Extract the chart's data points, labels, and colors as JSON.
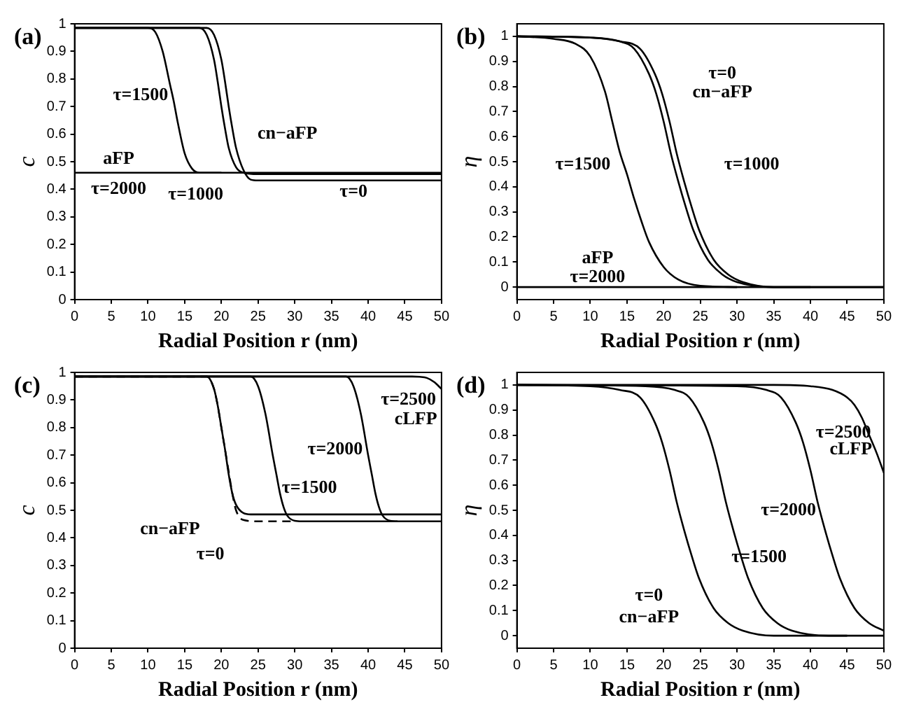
{
  "chart_data": [
    {
      "type": "line",
      "title": "(a)",
      "xlabel": "Radial Position r (nm)",
      "ylabel": "c",
      "xlim": [
        0,
        50
      ],
      "xticks": [
        0,
        5,
        10,
        15,
        20,
        25,
        30,
        35,
        40,
        45,
        50
      ],
      "ylim": [
        0,
        1
      ],
      "yticks": [
        0,
        0.1,
        0.2,
        0.3,
        0.4,
        0.5,
        0.6,
        0.7,
        0.8,
        0.9,
        1
      ],
      "marker": "none",
      "legend": false,
      "series": [
        {
          "color": "#000000",
          "x": [
            0,
            10,
            11,
            12,
            13,
            13.5,
            14,
            15,
            16,
            17,
            20
          ],
          "values": [
            0.985,
            0.985,
            0.97,
            0.9,
            0.78,
            0.72,
            0.65,
            0.53,
            0.475,
            0.46,
            0.46
          ]
        },
        {
          "color": "#000000",
          "x": [
            0,
            17,
            18,
            19,
            19.5,
            20,
            20.5,
            21,
            22,
            23,
            25,
            50
          ],
          "values": [
            0.985,
            0.985,
            0.96,
            0.87,
            0.79,
            0.7,
            0.62,
            0.55,
            0.48,
            0.46,
            0.455,
            0.455
          ]
        },
        {
          "color": "#000000",
          "x": [
            0,
            18,
            19,
            20,
            20.5,
            21,
            21.5,
            22,
            23,
            24,
            25,
            50
          ],
          "values": [
            0.985,
            0.985,
            0.96,
            0.87,
            0.79,
            0.7,
            0.62,
            0.55,
            0.47,
            0.435,
            0.432,
            0.432
          ]
        },
        {
          "color": "#000000",
          "x": [
            0,
            25,
            50
          ],
          "values": [
            0.46,
            0.46,
            0.46
          ]
        }
      ],
      "annotations": [
        "τ=1500",
        "aFP",
        "τ=2000",
        "τ=1000",
        "cn−aFP",
        "τ=0"
      ]
    },
    {
      "type": "line",
      "title": "(b)",
      "xlabel": "Radial Position r (nm)",
      "ylabel": "η",
      "xlim": [
        0,
        50
      ],
      "xticks": [
        0,
        5,
        10,
        15,
        20,
        25,
        30,
        35,
        40,
        45,
        50
      ],
      "ylim": [
        -0.05,
        1.05
      ],
      "yticks": [
        0,
        0.1,
        0.2,
        0.3,
        0.4,
        0.5,
        0.6,
        0.7,
        0.8,
        0.9,
        1
      ],
      "marker": "none",
      "legend": false,
      "series": [
        {
          "color": "#000000",
          "x": [
            0,
            5,
            8,
            10,
            12,
            13,
            14,
            15,
            16,
            17,
            18,
            20,
            22,
            25,
            30
          ],
          "values": [
            1,
            0.99,
            0.97,
            0.92,
            0.78,
            0.66,
            0.54,
            0.45,
            0.35,
            0.26,
            0.18,
            0.08,
            0.03,
            0.005,
            0
          ]
        },
        {
          "color": "#000000",
          "x": [
            0,
            10,
            14,
            16,
            18,
            19,
            20,
            21,
            22,
            23,
            24,
            26,
            28,
            30,
            35,
            40
          ],
          "values": [
            1,
            0.995,
            0.98,
            0.95,
            0.85,
            0.77,
            0.66,
            0.53,
            0.42,
            0.32,
            0.23,
            0.11,
            0.05,
            0.02,
            0,
            0
          ]
        },
        {
          "color": "#000000",
          "x": [
            0,
            10,
            14,
            16.8,
            18.8,
            19.8,
            20.8,
            21.8,
            22.8,
            23.8,
            24.8,
            26.8,
            28.8,
            30.8,
            35,
            50
          ],
          "values": [
            1,
            0.995,
            0.98,
            0.95,
            0.85,
            0.77,
            0.66,
            0.53,
            0.42,
            0.32,
            0.23,
            0.11,
            0.05,
            0.02,
            0,
            0
          ]
        },
        {
          "color": "#000000",
          "x": [
            0,
            25,
            50
          ],
          "values": [
            0,
            0,
            0
          ]
        }
      ],
      "annotations": [
        "τ=0",
        "cn−aFP",
        "τ=1000",
        "τ=1500",
        "aFP",
        "τ=2000"
      ]
    },
    {
      "type": "line",
      "title": "(c)",
      "xlabel": "Radial Position r (nm)",
      "ylabel": "c",
      "xlim": [
        0,
        50
      ],
      "xticks": [
        0,
        5,
        10,
        15,
        20,
        25,
        30,
        35,
        40,
        45,
        50
      ],
      "ylim": [
        0,
        1
      ],
      "yticks": [
        0,
        0.1,
        0.2,
        0.3,
        0.4,
        0.5,
        0.6,
        0.7,
        0.8,
        0.9,
        1
      ],
      "marker": "none",
      "legend": false,
      "series": [
        {
          "color": "#000000",
          "x": [
            0,
            18,
            19,
            19.5,
            20,
            20.5,
            21,
            21.5,
            22,
            23,
            24,
            50
          ],
          "values": [
            0.985,
            0.985,
            0.94,
            0.88,
            0.8,
            0.72,
            0.63,
            0.56,
            0.52,
            0.49,
            0.485,
            0.485
          ]
        },
        {
          "color": "#000000",
          "line_style": "dashed",
          "x": [
            0,
            18,
            19,
            19.5,
            20,
            20.5,
            21,
            21.5,
            22,
            23,
            25,
            30
          ],
          "values": [
            0.985,
            0.985,
            0.94,
            0.88,
            0.8,
            0.72,
            0.64,
            0.56,
            0.5,
            0.465,
            0.46,
            0.46
          ]
        },
        {
          "color": "#000000",
          "x": [
            0,
            24,
            25,
            26,
            27,
            27.5,
            28,
            28.5,
            29,
            30,
            31,
            44
          ],
          "values": [
            0.985,
            0.985,
            0.95,
            0.85,
            0.7,
            0.63,
            0.56,
            0.51,
            0.48,
            0.462,
            0.46,
            0.46
          ]
        },
        {
          "color": "#000000",
          "x": [
            0,
            37,
            38,
            39,
            40,
            40.5,
            41,
            41.5,
            42,
            43,
            44,
            50
          ],
          "values": [
            0.985,
            0.985,
            0.95,
            0.85,
            0.7,
            0.63,
            0.56,
            0.51,
            0.48,
            0.462,
            0.46,
            0.46
          ]
        },
        {
          "color": "#000000",
          "x": [
            0,
            46,
            47,
            48,
            49,
            50
          ],
          "values": [
            0.985,
            0.985,
            0.984,
            0.98,
            0.965,
            0.94
          ]
        }
      ],
      "annotations": [
        "τ=2500",
        "cLFP",
        "τ=2000",
        "τ=1500",
        "cn−aFP",
        "τ=0"
      ]
    },
    {
      "type": "line",
      "title": "(d)",
      "xlabel": "Radial Position r (nm)",
      "ylabel": "η",
      "xlim": [
        0,
        50
      ],
      "xticks": [
        0,
        5,
        10,
        15,
        20,
        25,
        30,
        35,
        40,
        45,
        50
      ],
      "ylim": [
        -0.05,
        1.05
      ],
      "yticks": [
        0,
        0.1,
        0.2,
        0.3,
        0.4,
        0.5,
        0.6,
        0.7,
        0.8,
        0.9,
        1
      ],
      "marker": "none",
      "legend": false,
      "series": [
        {
          "color": "#000000",
          "x": [
            0,
            10,
            14,
            16.8,
            18.8,
            19.8,
            20.8,
            21.8,
            22.8,
            23.8,
            24.8,
            26.8,
            28.8,
            30.8,
            35,
            45
          ],
          "values": [
            1,
            0.995,
            0.98,
            0.95,
            0.85,
            0.77,
            0.66,
            0.53,
            0.42,
            0.32,
            0.23,
            0.11,
            0.05,
            0.02,
            0,
            0
          ]
        },
        {
          "color": "#000000",
          "x": [
            0,
            17.5,
            21.5,
            23.5,
            25.5,
            26.5,
            27.5,
            28.5,
            29.5,
            30.5,
            31.5,
            33.5,
            35.5,
            37.5,
            42.5,
            50
          ],
          "values": [
            1,
            0.995,
            0.98,
            0.95,
            0.85,
            0.77,
            0.66,
            0.53,
            0.42,
            0.32,
            0.23,
            0.11,
            0.05,
            0.02,
            0,
            0
          ]
        },
        {
          "color": "#000000",
          "x": [
            0,
            30,
            34,
            36,
            38,
            39,
            40,
            41,
            42,
            43,
            44,
            46,
            48,
            50
          ],
          "values": [
            1,
            0.995,
            0.98,
            0.95,
            0.85,
            0.77,
            0.66,
            0.53,
            0.42,
            0.32,
            0.23,
            0.11,
            0.05,
            0.02
          ]
        },
        {
          "color": "#000000",
          "x": [
            0,
            35,
            40,
            43,
            45,
            46,
            47,
            48,
            49,
            50
          ],
          "values": [
            1,
            1,
            0.995,
            0.98,
            0.95,
            0.92,
            0.87,
            0.8,
            0.73,
            0.65
          ]
        }
      ],
      "annotations": [
        "τ=2500",
        "cLFP",
        "τ=2000",
        "τ=1500",
        "τ=0",
        "cn−aFP"
      ]
    }
  ]
}
